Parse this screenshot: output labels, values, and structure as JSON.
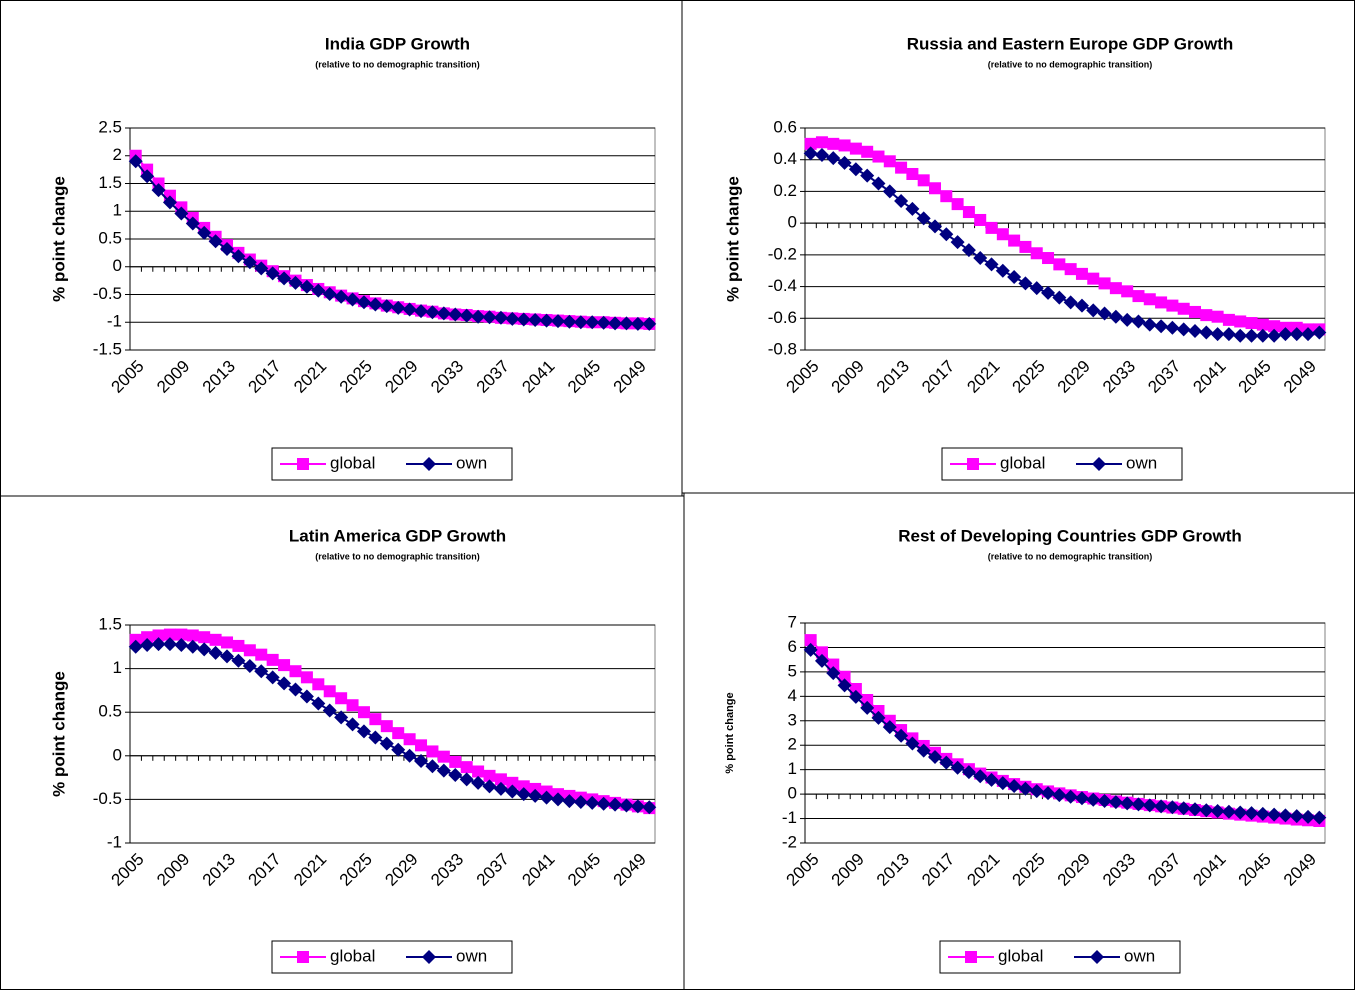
{
  "chart_data": [
    {
      "type": "line",
      "title": "India GDP Growth",
      "subtitle": "(relative to no demographic transition)",
      "y_label": "% point change",
      "categories": [
        "2005",
        null,
        null,
        null,
        "2009",
        null,
        null,
        null,
        "2013",
        null,
        null,
        null,
        "2017",
        null,
        null,
        null,
        "2021",
        null,
        null,
        null,
        "2025",
        null,
        null,
        null,
        "2029",
        null,
        null,
        null,
        "2033",
        null,
        null,
        null,
        "2037",
        null,
        null,
        null,
        "2041",
        null,
        null,
        null,
        "2045",
        null,
        null,
        null,
        "2049",
        null
      ],
      "ylim": [
        -1.5,
        2.5
      ],
      "yticks": [
        -1.5,
        -1,
        -0.5,
        0,
        0.5,
        1,
        1.5,
        2,
        2.5
      ],
      "grid": true,
      "legend": "bottom",
      "series": [
        {
          "name": "global",
          "color": "#ff00ff",
          "marker": "square",
          "values": [
            2.0,
            1.75,
            1.5,
            1.28,
            1.07,
            0.88,
            0.7,
            0.54,
            0.39,
            0.25,
            0.13,
            0.02,
            -0.08,
            -0.17,
            -0.25,
            -0.33,
            -0.4,
            -0.46,
            -0.52,
            -0.57,
            -0.62,
            -0.66,
            -0.7,
            -0.73,
            -0.76,
            -0.79,
            -0.81,
            -0.84,
            -0.86,
            -0.87,
            -0.89,
            -0.9,
            -0.92,
            -0.93,
            -0.94,
            -0.95,
            -0.96,
            -0.97,
            -0.98,
            -0.99,
            -1.0,
            -1.0,
            -1.01,
            -1.02,
            -1.02,
            -1.03
          ]
        },
        {
          "name": "own",
          "color": "#000080",
          "marker": "diamond",
          "values": [
            1.9,
            1.63,
            1.38,
            1.16,
            0.96,
            0.78,
            0.61,
            0.46,
            0.32,
            0.19,
            0.08,
            -0.03,
            -0.12,
            -0.21,
            -0.29,
            -0.36,
            -0.43,
            -0.49,
            -0.54,
            -0.59,
            -0.64,
            -0.68,
            -0.71,
            -0.74,
            -0.77,
            -0.8,
            -0.82,
            -0.84,
            -0.86,
            -0.88,
            -0.9,
            -0.91,
            -0.92,
            -0.94,
            -0.95,
            -0.96,
            -0.97,
            -0.98,
            -0.99,
            -1.0,
            -1.0,
            -1.01,
            -1.02,
            -1.02,
            -1.03,
            -1.03
          ]
        }
      ]
    },
    {
      "type": "line",
      "title": "Russia and Eastern Europe GDP Growth",
      "subtitle": "(relative to no demographic transition)",
      "y_label": "% point change",
      "categories": [
        "2005",
        null,
        null,
        null,
        "2009",
        null,
        null,
        null,
        "2013",
        null,
        null,
        null,
        "2017",
        null,
        null,
        null,
        "2021",
        null,
        null,
        null,
        "2025",
        null,
        null,
        null,
        "2029",
        null,
        null,
        null,
        "2033",
        null,
        null,
        null,
        "2037",
        null,
        null,
        null,
        "2041",
        null,
        null,
        null,
        "2045",
        null,
        null,
        null,
        "2049",
        null
      ],
      "ylim": [
        -0.8,
        0.6
      ],
      "yticks": [
        -0.8,
        -0.6,
        -0.4,
        -0.2,
        0,
        0.2,
        0.4,
        0.6
      ],
      "grid": true,
      "legend": "bottom",
      "series": [
        {
          "name": "global",
          "color": "#ff00ff",
          "marker": "square",
          "values": [
            0.5,
            0.51,
            0.5,
            0.49,
            0.47,
            0.45,
            0.42,
            0.39,
            0.35,
            0.31,
            0.27,
            0.22,
            0.17,
            0.12,
            0.07,
            0.02,
            -0.03,
            -0.07,
            -0.11,
            -0.15,
            -0.19,
            -0.22,
            -0.26,
            -0.29,
            -0.32,
            -0.35,
            -0.38,
            -0.41,
            -0.43,
            -0.46,
            -0.48,
            -0.5,
            -0.52,
            -0.54,
            -0.56,
            -0.58,
            -0.59,
            -0.61,
            -0.62,
            -0.63,
            -0.64,
            -0.65,
            -0.66,
            -0.66,
            -0.67,
            -0.67
          ]
        },
        {
          "name": "own",
          "color": "#000080",
          "marker": "diamond",
          "values": [
            0.44,
            0.43,
            0.41,
            0.38,
            0.34,
            0.3,
            0.25,
            0.2,
            0.14,
            0.09,
            0.03,
            -0.02,
            -0.07,
            -0.12,
            -0.17,
            -0.22,
            -0.26,
            -0.3,
            -0.34,
            -0.38,
            -0.41,
            -0.44,
            -0.47,
            -0.5,
            -0.52,
            -0.55,
            -0.57,
            -0.59,
            -0.61,
            -0.62,
            -0.64,
            -0.65,
            -0.66,
            -0.67,
            -0.68,
            -0.69,
            -0.7,
            -0.7,
            -0.71,
            -0.71,
            -0.71,
            -0.71,
            -0.7,
            -0.7,
            -0.7,
            -0.69
          ]
        }
      ]
    },
    {
      "type": "line",
      "title": "Latin America GDP Growth",
      "subtitle": "(relative to no demographic transition)",
      "y_label": "% point change",
      "categories": [
        "2005",
        null,
        null,
        null,
        "2009",
        null,
        null,
        null,
        "2013",
        null,
        null,
        null,
        "2017",
        null,
        null,
        null,
        "2021",
        null,
        null,
        null,
        "2025",
        null,
        null,
        null,
        "2029",
        null,
        null,
        null,
        "2033",
        null,
        null,
        null,
        "2037",
        null,
        null,
        null,
        "2041",
        null,
        null,
        null,
        "2045",
        null,
        null,
        null,
        "2049",
        null
      ],
      "ylim": [
        -1,
        1.5
      ],
      "yticks": [
        -1,
        -0.5,
        0,
        0.5,
        1,
        1.5
      ],
      "grid": true,
      "legend": "bottom",
      "series": [
        {
          "name": "global",
          "color": "#ff00ff",
          "marker": "square",
          "values": [
            1.33,
            1.36,
            1.38,
            1.39,
            1.39,
            1.38,
            1.36,
            1.33,
            1.3,
            1.26,
            1.21,
            1.16,
            1.1,
            1.04,
            0.97,
            0.9,
            0.82,
            0.74,
            0.66,
            0.58,
            0.5,
            0.42,
            0.34,
            0.26,
            0.19,
            0.12,
            0.05,
            -0.01,
            -0.07,
            -0.13,
            -0.18,
            -0.23,
            -0.27,
            -0.31,
            -0.35,
            -0.38,
            -0.41,
            -0.44,
            -0.46,
            -0.48,
            -0.5,
            -0.52,
            -0.54,
            -0.56,
            -0.58,
            -0.6
          ]
        },
        {
          "name": "own",
          "color": "#000080",
          "marker": "diamond",
          "values": [
            1.25,
            1.27,
            1.28,
            1.28,
            1.27,
            1.25,
            1.22,
            1.18,
            1.14,
            1.09,
            1.03,
            0.97,
            0.9,
            0.83,
            0.76,
            0.68,
            0.6,
            0.52,
            0.44,
            0.36,
            0.28,
            0.21,
            0.14,
            0.07,
            0.0,
            -0.06,
            -0.12,
            -0.17,
            -0.22,
            -0.27,
            -0.31,
            -0.35,
            -0.38,
            -0.41,
            -0.44,
            -0.46,
            -0.48,
            -0.5,
            -0.52,
            -0.53,
            -0.54,
            -0.55,
            -0.56,
            -0.57,
            -0.58,
            -0.59
          ]
        }
      ]
    },
    {
      "type": "line",
      "title": "Rest of Developing Countries GDP Growth",
      "subtitle": "(relative to no demographic transition)",
      "y_label": "% point change",
      "categories": [
        "2005",
        null,
        null,
        null,
        "2009",
        null,
        null,
        null,
        "2013",
        null,
        null,
        null,
        "2017",
        null,
        null,
        null,
        "2021",
        null,
        null,
        null,
        "2025",
        null,
        null,
        null,
        "2029",
        null,
        null,
        null,
        "2033",
        null,
        null,
        null,
        "2037",
        null,
        null,
        null,
        "2041",
        null,
        null,
        null,
        "2045",
        null,
        null,
        null,
        "2049",
        null
      ],
      "ylim": [
        -2,
        7
      ],
      "yticks": [
        -2,
        -1,
        0,
        1,
        2,
        3,
        4,
        5,
        6,
        7
      ],
      "grid": true,
      "legend": "bottom",
      "series": [
        {
          "name": "global",
          "color": "#ff00ff",
          "marker": "square",
          "values": [
            6.3,
            5.8,
            5.3,
            4.8,
            4.3,
            3.85,
            3.4,
            3.0,
            2.62,
            2.28,
            1.97,
            1.69,
            1.44,
            1.22,
            1.02,
            0.84,
            0.68,
            0.54,
            0.41,
            0.3,
            0.2,
            0.11,
            0.03,
            -0.05,
            -0.12,
            -0.18,
            -0.24,
            -0.3,
            -0.35,
            -0.4,
            -0.45,
            -0.5,
            -0.55,
            -0.6,
            -0.65,
            -0.7,
            -0.75,
            -0.8,
            -0.84,
            -0.88,
            -0.92,
            -0.96,
            -1.0,
            -1.04,
            -1.07,
            -1.1
          ]
        },
        {
          "name": "own",
          "color": "#000080",
          "marker": "diamond",
          "values": [
            5.9,
            5.45,
            4.95,
            4.45,
            3.98,
            3.53,
            3.12,
            2.74,
            2.39,
            2.07,
            1.78,
            1.52,
            1.29,
            1.08,
            0.9,
            0.73,
            0.58,
            0.45,
            0.33,
            0.22,
            0.12,
            0.04,
            -0.04,
            -0.11,
            -0.17,
            -0.23,
            -0.28,
            -0.33,
            -0.38,
            -0.42,
            -0.46,
            -0.5,
            -0.54,
            -0.58,
            -0.62,
            -0.66,
            -0.69,
            -0.72,
            -0.75,
            -0.78,
            -0.81,
            -0.84,
            -0.87,
            -0.9,
            -0.93,
            -0.96
          ]
        }
      ]
    }
  ]
}
